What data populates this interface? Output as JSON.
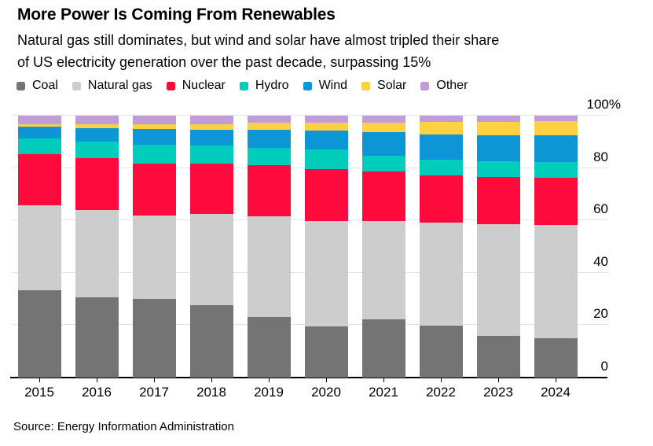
{
  "header": {
    "title": "More Power Is Coming From Renewables",
    "subtitle_lines": [
      "Natural gas still dominates, but wind and solar have almost tripled their share",
      "of US electricity generation over the past decade, surpassing 15%"
    ]
  },
  "chart_data": {
    "type": "bar",
    "stacked": true,
    "unit": "percent share of US electricity generation",
    "categories": [
      "2015",
      "2016",
      "2017",
      "2018",
      "2019",
      "2020",
      "2021",
      "2022",
      "2023",
      "2024"
    ],
    "series": [
      {
        "name": "Coal",
        "color": "#747474",
        "values": [
          33.2,
          30.5,
          29.9,
          27.7,
          23.2,
          19.4,
          22.2,
          19.7,
          16.0,
          15.0
        ]
      },
      {
        "name": "Natural gas",
        "color": "#cdcdcd",
        "values": [
          32.6,
          33.5,
          32.1,
          34.8,
          38.3,
          40.3,
          37.6,
          39.4,
          42.6,
          43.4
        ]
      },
      {
        "name": "Nuclear",
        "color": "#ff0a3c",
        "values": [
          19.4,
          19.8,
          19.6,
          19.2,
          19.5,
          19.9,
          18.8,
          18.0,
          18.1,
          18.0
        ]
      },
      {
        "name": "Hydro",
        "color": "#00ccbc",
        "values": [
          6.2,
          6.4,
          7.4,
          6.8,
          6.6,
          7.4,
          6.0,
          6.1,
          5.9,
          5.9
        ]
      },
      {
        "name": "Wind",
        "color": "#0d96d6",
        "values": [
          4.3,
          5.0,
          5.8,
          6.0,
          7.1,
          7.2,
          9.0,
          9.7,
          10.0,
          10.2
        ]
      },
      {
        "name": "Solar",
        "color": "#fed141",
        "values": [
          1.1,
          1.5,
          1.8,
          2.1,
          2.5,
          3.1,
          3.8,
          4.8,
          5.0,
          5.4
        ]
      },
      {
        "name": "Other",
        "color": "#c19cdb",
        "values": [
          3.2,
          3.3,
          3.4,
          3.4,
          2.8,
          2.7,
          2.6,
          2.3,
          2.4,
          2.1
        ]
      }
    ],
    "yticks": [
      0,
      20,
      40,
      60,
      80,
      100
    ],
    "ytick_labels": [
      "0",
      "20",
      "40",
      "60",
      "80",
      "100%"
    ],
    "ylim": [
      0,
      100
    ],
    "legend_position": "top",
    "grid": "horizontal",
    "colors": {
      "grid": "#e3e3e3",
      "axis": "#000000",
      "text": "#000000",
      "background": "#ffffff"
    }
  },
  "footer": {
    "source": "Source: Energy Information Administration"
  }
}
